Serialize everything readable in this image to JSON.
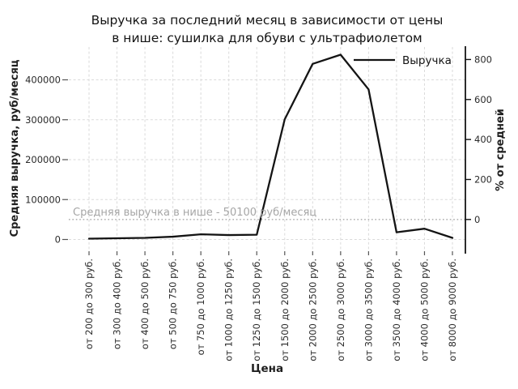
{
  "page": {
    "title_line1": "Выручка за последний месяц в зависимости от цены",
    "title_line2": "в нише: сушилка для обуви с ультрафиолетом"
  },
  "chart_data": {
    "type": "line",
    "title": "Выручка за последний месяц в зависимости от цены в нише: сушилка для обуви с ультрафиолетом",
    "xlabel": "Цена",
    "ylabel_left": "Средняя выручка, руб/месяц",
    "ylabel_right": "% от средней",
    "legend": {
      "entries": [
        "Выручка"
      ],
      "position": "upper right",
      "frame": false
    },
    "grid": true,
    "categories": [
      "от 200 до 300 руб.",
      "от 300 до 400 руб.",
      "от 400 до 500 руб.",
      "от 500 до 750 руб.",
      "от 750 до 1000 руб.",
      "от 1000 до 1250 руб.",
      "от 1250 до 1500 руб.",
      "от 1500 до 2000 руб.",
      "от 2000 до 2500 руб.",
      "от 2500 до 3000 руб.",
      "от 3000 до 3500 руб.",
      "от 3500 до 4000 руб.",
      "от 4000 до 5000 руб.",
      "от 8000 до 9000 руб."
    ],
    "series": [
      {
        "name": "Выручка",
        "values": [
          2000,
          3000,
          4000,
          7000,
          13000,
          11000,
          12000,
          301000,
          440000,
          463000,
          376000,
          18000,
          27000,
          4000
        ]
      }
    ],
    "y_left_axis": {
      "ticks": [
        0,
        100000,
        200000,
        300000,
        400000
      ],
      "unit": "руб/месяц",
      "ylim": [
        0,
        490000
      ]
    },
    "y_right_axis": {
      "ticks": [
        0,
        200,
        400,
        600,
        800
      ],
      "unit": "%",
      "zero_means": "средняя выручка в нише"
    },
    "average_line": {
      "value": 50100,
      "label": "Средняя выручка в нише - 50100 руб/месяц",
      "style": "dotted"
    },
    "colors": {
      "line": "#141414",
      "grid": "#dadada",
      "annotation": "#a6a6a6",
      "tick_text": "#2b2b2b",
      "spine": "#141414"
    }
  }
}
